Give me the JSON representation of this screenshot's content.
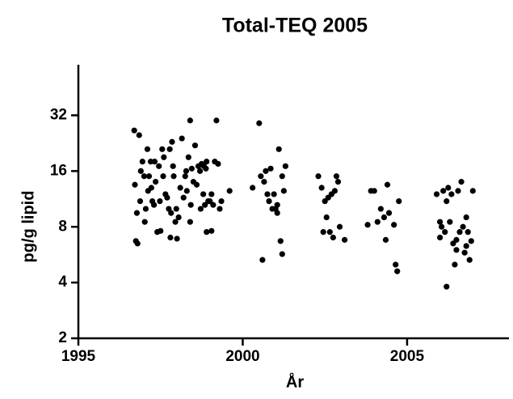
{
  "chart_data": {
    "type": "scatter",
    "title": "Total-TEQ 2005",
    "x_label": "År",
    "y_label": "pg/g lipid",
    "color": "#000000",
    "y_scale": "log",
    "grid": false,
    "xlim": [
      1995,
      2008
    ],
    "xticks": [
      1995,
      2000,
      2005
    ],
    "ylim": [
      2,
      60
    ],
    "yticks": [
      2,
      4,
      8,
      16,
      32
    ],
    "x": [
      1996.7,
      1996.72,
      1996.75,
      1996.78,
      1996.8,
      1996.85,
      1996.88,
      1996.9,
      1996.95,
      1997.0,
      1997.02,
      1997.05,
      1997.1,
      1997.12,
      1997.15,
      1997.2,
      1997.22,
      1997.25,
      1997.3,
      1997.32,
      1997.35,
      1997.4,
      1997.45,
      1997.48,
      1997.5,
      1997.55,
      1997.58,
      1997.6,
      1997.65,
      1997.7,
      1997.75,
      1997.78,
      1997.8,
      1997.82,
      1997.85,
      1997.88,
      1997.9,
      1997.95,
      1997.98,
      1998.0,
      1998.05,
      1998.1,
      1998.15,
      1998.2,
      1998.25,
      1998.28,
      1998.3,
      1998.35,
      1998.4,
      1998.42,
      1998.45,
      1998.5,
      1998.55,
      1998.6,
      1998.65,
      1998.7,
      1998.72,
      1998.75,
      1998.8,
      1998.82,
      1998.85,
      1998.88,
      1998.9,
      1998.95,
      1999.0,
      1999.05,
      1999.1,
      1999.15,
      1999.2,
      1999.25,
      1999.3,
      1999.35,
      1999.05,
      1998.4,
      1998.9,
      1999.6,
      2000.3,
      2000.5,
      2000.55,
      2000.6,
      2000.65,
      2000.7,
      2000.75,
      2000.8,
      2000.85,
      2000.9,
      2000.95,
      2001.0,
      2001.05,
      2001.1,
      2001.15,
      2001.2,
      2001.25,
      2001.3,
      2001.05,
      2001.2,
      2002.3,
      2002.4,
      2002.45,
      2002.5,
      2002.55,
      2002.6,
      2002.65,
      2002.7,
      2002.75,
      2002.8,
      2002.85,
      2002.9,
      2002.95,
      2003.1,
      2003.8,
      2003.9,
      2004.0,
      2004.1,
      2004.2,
      2004.3,
      2004.35,
      2004.4,
      2004.45,
      2004.6,
      2004.65,
      2004.7,
      2004.75,
      2005.9,
      2006.0,
      2006.05,
      2006.1,
      2006.15,
      2006.2,
      2006.25,
      2006.3,
      2006.35,
      2006.4,
      2006.45,
      2006.5,
      2006.55,
      2006.6,
      2006.65,
      2006.7,
      2006.75,
      2006.8,
      2006.85,
      2006.9,
      2006.95,
      2007.0,
      2006.0,
      2006.2,
      2006.5,
      2006.8
    ],
    "values": [
      26.5,
      13.5,
      6.7,
      9.5,
      6.5,
      25,
      11,
      16,
      18,
      15,
      8.5,
      10,
      21,
      12.5,
      15,
      18,
      13,
      11,
      10.5,
      18,
      14,
      7.5,
      17,
      11,
      7.6,
      21,
      15,
      19,
      12,
      11.5,
      10,
      21,
      7,
      9.5,
      23,
      17,
      15,
      8.5,
      10,
      6.9,
      9,
      13,
      24,
      11.5,
      15,
      16,
      12.5,
      19,
      8.5,
      10.5,
      16.5,
      14,
      22,
      13.5,
      17,
      16,
      10,
      17.5,
      12,
      17,
      10.5,
      16.5,
      7.5,
      11,
      11,
      7.6,
      10.5,
      18,
      30,
      17.5,
      10,
      11,
      12,
      30,
      18,
      12.5,
      13,
      29,
      15,
      5.3,
      14,
      16,
      12,
      11,
      16.5,
      10,
      12,
      10,
      9.5,
      21,
      6.7,
      5.7,
      12.5,
      17,
      10.5,
      15,
      15,
      13,
      7.5,
      11,
      9,
      11.5,
      7.5,
      12,
      7,
      12.5,
      15,
      14,
      8,
      6.8,
      8.2,
      12.5,
      12.5,
      8.5,
      10,
      9,
      6.8,
      13.5,
      9.5,
      8.2,
      5,
      4.6,
      11,
      12,
      7,
      8,
      12.5,
      7.5,
      3.8,
      13,
      8.5,
      12,
      6.5,
      5,
      6,
      12.5,
      7.5,
      14,
      8,
      5.8,
      9,
      7.5,
      5.3,
      6.7,
      12.5,
      8.5,
      11,
      6.8,
      6.3
    ]
  }
}
